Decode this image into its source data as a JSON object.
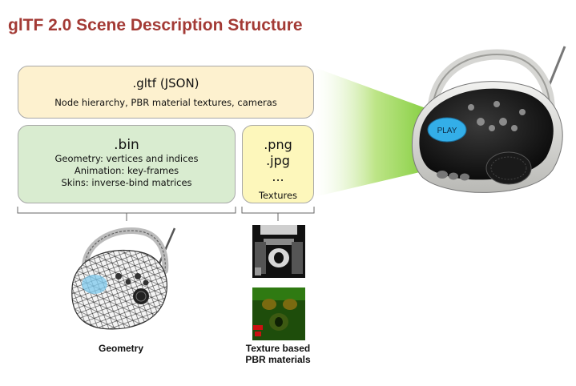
{
  "title": "glTF 2.0 Scene Description Structure",
  "gltf": {
    "heading": ".gltf (JSON)",
    "description": "Node hierarchy, PBR material textures, cameras"
  },
  "bin": {
    "heading": ".bin",
    "lines": [
      "Geometry: vertices and indices",
      "Animation: key-frames",
      "Skins: inverse-bind matrices"
    ]
  },
  "textures": {
    "formats": [
      ".png",
      ".jpg",
      "..."
    ],
    "label": "Textures"
  },
  "boombox_label": "PLAY",
  "captions": {
    "geometry": "Geometry",
    "texture_line1": "Texture based",
    "texture_line2": "PBR materials"
  },
  "colors": {
    "title": "#a33a35",
    "gltf_box": "#fdf1cf",
    "bin_box": "#d9ecd0",
    "texture_box": "#fdf7bb",
    "beam": "#7ccc2a"
  }
}
